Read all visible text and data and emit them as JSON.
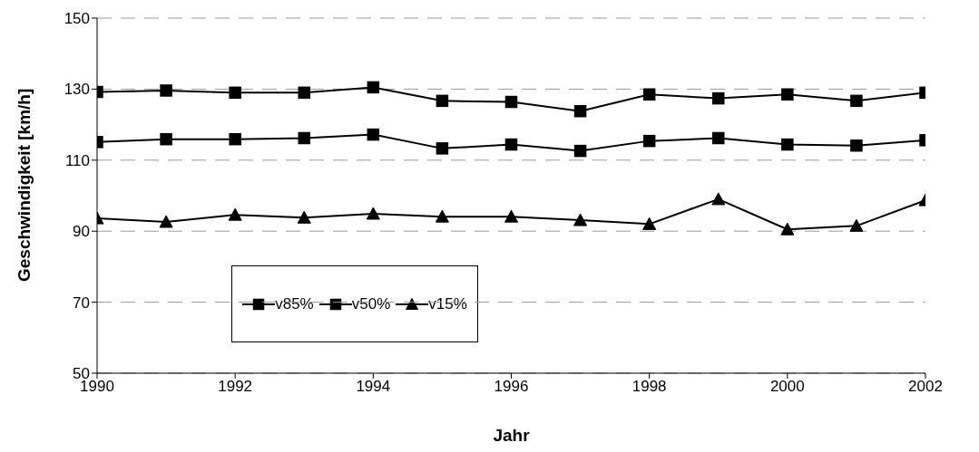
{
  "chart_data": {
    "type": "line",
    "xlabel": "Jahr",
    "ylabel": "Geschwindigkeit [km/h]",
    "x": [
      1990,
      1991,
      1992,
      1993,
      1994,
      1995,
      1996,
      1997,
      1998,
      1999,
      2000,
      2001,
      2002
    ],
    "series": [
      {
        "name": "v85%",
        "color": "#000000",
        "marker": "square",
        "values": [
          129.2,
          129.6,
          129,
          129,
          130.5,
          126.7,
          126.4,
          123.8,
          128.5,
          127.4,
          128.5,
          126.7,
          129
        ]
      },
      {
        "name": "v50%",
        "color": "#000000",
        "marker": "square",
        "values": [
          115.1,
          115.9,
          115.9,
          116.2,
          117.2,
          113.3,
          114.4,
          112.6,
          115.4,
          116.2,
          114.4,
          114.1,
          115.6
        ]
      },
      {
        "name": "v15%",
        "color": "#000000",
        "marker": "triangle",
        "values": [
          93.6,
          92.6,
          94.6,
          93.8,
          94.9,
          94.1,
          94.1,
          93.1,
          92,
          99,
          90.5,
          91.5,
          98.7
        ]
      }
    ],
    "xlim": [
      1990,
      2002
    ],
    "xticks": [
      1990,
      1992,
      1994,
      1996,
      1998,
      2000,
      2002
    ],
    "ylim": [
      50,
      150
    ],
    "yticks": [
      50,
      70,
      90,
      110,
      130,
      150
    ],
    "grid": "y",
    "legend": "bottom left",
    "line_style": "solid"
  }
}
